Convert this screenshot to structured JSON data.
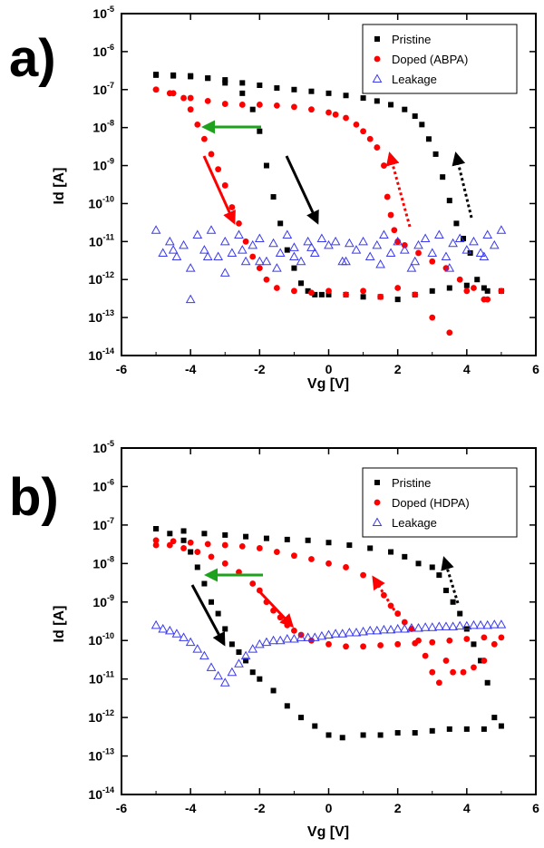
{
  "colors": {
    "pristine": "#000000",
    "doped": "#ff0000",
    "leakage": "#3a3af0",
    "green_arrow": "#1ea21e"
  },
  "chart_data": [
    {
      "type": "scatter",
      "panel_label": "a)",
      "xlabel": "Vg [V]",
      "ylabel": "Id [A]",
      "xlim": [
        -6,
        6
      ],
      "ylim": [
        1e-14,
        1e-05
      ],
      "yscale": "log",
      "x_ticks": [
        "-6",
        "-4",
        "-2",
        "0",
        "2",
        "4",
        "6"
      ],
      "y_ticks": [
        "-14",
        "-13",
        "-12",
        "-11",
        "-10",
        "-9",
        "-8",
        "-7",
        "-6",
        "-5"
      ],
      "grid": false,
      "legend_position": "top-right",
      "series": [
        {
          "name": "Pristine",
          "marker": "square",
          "color": "#000000",
          "x": [
            -5.0,
            -4.5,
            -4.0,
            -3.5,
            -3.0,
            -2.5,
            -2.2,
            -2.0,
            -1.8,
            -1.6,
            -1.4,
            -1.2,
            -1.0,
            -0.8,
            -0.6,
            -0.4,
            -0.2,
            0.0,
            0.5,
            1.0,
            1.5,
            2.0,
            2.5,
            3.0,
            3.5,
            4.0,
            4.5,
            5.0,
            4.6,
            4.3,
            4.1,
            3.9,
            3.7,
            3.5,
            3.3,
            3.1,
            2.9,
            2.7,
            2.5,
            2.2,
            1.8,
            1.4,
            1.0,
            0.5,
            0.0,
            -0.5,
            -1.0,
            -1.5,
            -2.0,
            -2.5,
            -3.0,
            -3.5,
            -4.0,
            -4.5,
            -5.0
          ],
          "y": [
            2.5e-07,
            2.4e-07,
            2.3e-07,
            2e-07,
            1.5e-07,
            8e-08,
            3e-08,
            8e-09,
            1e-09,
            1.5e-10,
            3e-11,
            6e-12,
            2e-12,
            8e-13,
            5e-13,
            4e-13,
            4e-13,
            4e-13,
            4e-13,
            3.5e-13,
            3.5e-13,
            3e-13,
            4e-13,
            5e-13,
            6e-13,
            7e-13,
            6e-13,
            5e-13,
            5e-13,
            1e-12,
            5e-12,
            1.2e-11,
            3e-11,
            1.2e-10,
            5e-10,
            2e-09,
            5e-09,
            1.2e-08,
            2e-08,
            3e-08,
            4e-08,
            5e-08,
            6e-08,
            7e-08,
            8e-08,
            9e-08,
            1e-07,
            1.1e-07,
            1.3e-07,
            1.5e-07,
            1.8e-07,
            2e-07,
            2.2e-07,
            2.3e-07,
            2.4e-07
          ]
        },
        {
          "name": "Doped (ABPA)",
          "marker": "circle",
          "color": "#ff0000",
          "x": [
            -5.0,
            -4.6,
            -4.2,
            -4.0,
            -3.8,
            -3.6,
            -3.4,
            -3.2,
            -3.0,
            -2.8,
            -2.6,
            -2.4,
            -2.2,
            -2.0,
            -1.8,
            -1.5,
            -1.0,
            -0.5,
            0.0,
            0.5,
            1.0,
            1.5,
            2.0,
            2.5,
            3.0,
            3.5,
            4.0,
            4.5,
            5.0,
            4.6,
            4.2,
            3.8,
            3.4,
            3.0,
            2.6,
            2.2,
            2.0,
            1.9,
            1.8,
            1.7,
            1.6,
            1.4,
            1.2,
            1.0,
            0.8,
            0.5,
            0.2,
            0.0,
            -0.5,
            -1.0,
            -1.5,
            -2.0,
            -2.5,
            -3.0,
            -3.5,
            -4.0,
            -4.5,
            -5.0
          ],
          "y": [
            1e-07,
            8e-08,
            6e-08,
            3e-08,
            1.2e-08,
            5e-09,
            2e-09,
            8e-10,
            3e-10,
            8e-11,
            3e-11,
            1e-11,
            4e-12,
            2e-12,
            1e-12,
            6e-13,
            5e-13,
            4.5e-13,
            5e-13,
            4e-13,
            5e-13,
            3.5e-13,
            6e-13,
            4e-13,
            1e-13,
            4e-14,
            5e-13,
            3e-13,
            5e-13,
            3e-13,
            6e-13,
            1e-12,
            2e-12,
            3e-12,
            5e-12,
            8e-12,
            1e-11,
            2e-11,
            5e-11,
            1.5e-10,
            1e-09,
            3e-09,
            5e-09,
            8e-09,
            1.2e-08,
            1.8e-08,
            2.2e-08,
            2.5e-08,
            3e-08,
            3.5e-08,
            3.8e-08,
            4e-08,
            4e-08,
            4.2e-08,
            5e-08,
            6e-08,
            8e-08,
            1e-07
          ]
        },
        {
          "name": "Leakage",
          "marker": "triangle-open",
          "color": "#3a3af0",
          "x": [
            -5.0,
            -4.8,
            -4.6,
            -4.4,
            -4.2,
            -4.0,
            -3.8,
            -3.6,
            -3.4,
            -3.2,
            -3.0,
            -2.8,
            -2.6,
            -2.4,
            -2.2,
            -2.0,
            -1.8,
            -1.6,
            -1.4,
            -1.2,
            -1.0,
            -0.8,
            -0.6,
            -0.4,
            -0.2,
            0.0,
            0.2,
            0.4,
            0.6,
            0.8,
            1.0,
            1.2,
            1.4,
            1.6,
            1.8,
            2.0,
            2.2,
            2.4,
            2.6,
            2.8,
            3.0,
            3.2,
            3.4,
            3.6,
            3.8,
            4.0,
            4.2,
            4.4,
            4.6,
            4.8,
            5.0,
            -4.5,
            -4.0,
            -3.5,
            -3.0,
            -2.5,
            -2.0,
            -1.5,
            -1.0,
            -0.5,
            0.5,
            1.5,
            2.5,
            3.5,
            4.5
          ],
          "y": [
            2e-11,
            5e-12,
            1e-11,
            4e-12,
            8e-12,
            2e-12,
            1.5e-11,
            6e-12,
            2e-11,
            4e-12,
            1e-11,
            5e-12,
            1.5e-11,
            3e-12,
            8e-12,
            1.2e-11,
            3e-12,
            9e-12,
            5e-12,
            1.5e-11,
            7e-12,
            3e-12,
            1e-11,
            5e-12,
            1.2e-11,
            8e-12,
            1e-11,
            3e-12,
            9e-12,
            6e-12,
            1e-11,
            4e-12,
            8e-12,
            1.5e-11,
            5e-12,
            1e-11,
            6e-12,
            2e-12,
            8e-12,
            1.2e-11,
            5e-12,
            1.5e-11,
            4e-12,
            9e-12,
            1.2e-11,
            6e-12,
            1e-11,
            5e-12,
            1.5e-11,
            8e-12,
            2e-11,
            6e-12,
            3e-13,
            4e-12,
            1.5e-12,
            6e-12,
            3e-12,
            2e-12,
            4e-12,
            7e-12,
            3e-12,
            2.5e-12,
            3e-12,
            2e-12,
            4e-12
          ]
        }
      ]
    },
    {
      "type": "scatter",
      "panel_label": "b)",
      "xlabel": "Vg [V]",
      "ylabel": "Id [A]",
      "xlim": [
        -6,
        6
      ],
      "ylim": [
        1e-14,
        1e-05
      ],
      "yscale": "log",
      "x_ticks": [
        "-6",
        "-4",
        "-2",
        "0",
        "2",
        "4",
        "6"
      ],
      "y_ticks": [
        "-14",
        "-13",
        "-12",
        "-11",
        "-10",
        "-9",
        "-8",
        "-7",
        "-6",
        "-5"
      ],
      "grid": false,
      "legend_position": "top-right",
      "series": [
        {
          "name": "Pristine",
          "marker": "square",
          "color": "#000000",
          "x": [
            -5.0,
            -4.6,
            -4.2,
            -4.0,
            -3.8,
            -3.6,
            -3.4,
            -3.2,
            -3.0,
            -2.8,
            -2.6,
            -2.4,
            -2.2,
            -2.0,
            -1.6,
            -1.2,
            -0.8,
            -0.4,
            0.0,
            0.4,
            1.0,
            1.5,
            2.0,
            2.5,
            3.0,
            3.5,
            4.0,
            4.5,
            5.0,
            4.8,
            4.6,
            4.4,
            4.2,
            4.0,
            3.8,
            3.6,
            3.4,
            3.2,
            3.0,
            2.6,
            2.2,
            1.8,
            1.2,
            0.6,
            0.0,
            -0.6,
            -1.2,
            -1.8,
            -2.4,
            -3.0,
            -3.6,
            -4.2,
            -5.0
          ],
          "y": [
            8e-08,
            6e-08,
            4e-08,
            2e-08,
            8e-09,
            3e-09,
            1e-09,
            5e-10,
            2e-10,
            8e-11,
            5e-11,
            3e-11,
            1.5e-11,
            1e-11,
            5e-12,
            2e-12,
            1e-12,
            6e-13,
            3.5e-13,
            3e-13,
            3.5e-13,
            3.5e-13,
            4e-13,
            4e-13,
            4.5e-13,
            5e-13,
            5e-13,
            5e-13,
            6e-13,
            1e-12,
            8e-12,
            3e-11,
            8e-11,
            2e-10,
            5e-10,
            1e-09,
            2e-09,
            5e-09,
            8e-09,
            1e-08,
            1.5e-08,
            2e-08,
            2.5e-08,
            3e-08,
            3.5e-08,
            4e-08,
            4.2e-08,
            4.5e-08,
            5e-08,
            5.5e-08,
            6e-08,
            7e-08,
            8e-08
          ]
        },
        {
          "name": "Doped (HDPA)",
          "marker": "circle",
          "color": "#ff0000",
          "x": [
            -5.0,
            -4.6,
            -4.2,
            -3.8,
            -3.4,
            -3.0,
            -2.6,
            -2.2,
            -2.0,
            -1.8,
            -1.6,
            -1.4,
            -1.2,
            -1.0,
            -0.8,
            -0.5,
            0.0,
            0.5,
            1.0,
            1.5,
            2.0,
            2.5,
            3.0,
            3.5,
            4.0,
            4.5,
            5.0,
            4.8,
            4.5,
            4.2,
            3.9,
            3.6,
            3.4,
            3.2,
            3.0,
            2.8,
            2.6,
            2.4,
            2.2,
            2.0,
            1.8,
            1.6,
            1.4,
            1.0,
            0.5,
            0.0,
            -0.5,
            -1.0,
            -1.5,
            -2.0,
            -2.5,
            -3.0,
            -3.5,
            -4.0,
            -4.5,
            -5.0
          ],
          "y": [
            3e-08,
            3e-08,
            2.5e-08,
            2e-08,
            1.5e-08,
            1e-08,
            6e-09,
            3e-09,
            2e-09,
            1e-09,
            6e-10,
            4e-10,
            2.5e-10,
            1.8e-10,
            1.4e-10,
            1e-10,
            8e-11,
            7e-11,
            7e-11,
            7.5e-11,
            8e-11,
            8.5e-11,
            9e-11,
            1e-10,
            1.1e-10,
            1.2e-10,
            1.2e-10,
            8e-11,
            3e-11,
            2e-11,
            1.5e-11,
            1.5e-11,
            3e-11,
            8e-12,
            1.5e-11,
            4e-11,
            1e-10,
            2e-10,
            3e-10,
            5e-10,
            8e-10,
            1.5e-09,
            3e-09,
            5e-09,
            8e-09,
            1e-08,
            1.3e-08,
            1.6e-08,
            2e-08,
            2.5e-08,
            2.8e-08,
            3e-08,
            3.2e-08,
            3.5e-08,
            3.8e-08,
            4e-08
          ]
        },
        {
          "name": "Leakage",
          "marker": "triangle-open",
          "color": "#3a3af0",
          "x": [
            -5.0,
            -4.8,
            -4.6,
            -4.4,
            -4.2,
            -4.0,
            -3.8,
            -3.6,
            -3.4,
            -3.2,
            -3.0,
            -2.8,
            -2.6,
            -2.4,
            -2.2,
            -2.0,
            -1.8,
            -1.6,
            -1.4,
            -1.2,
            -1.0,
            -0.8,
            -0.6,
            -0.4,
            -0.2,
            0.0,
            0.2,
            0.4,
            0.6,
            0.8,
            1.0,
            1.2,
            1.4,
            1.6,
            1.8,
            2.0,
            2.2,
            2.4,
            2.6,
            2.8,
            3.0,
            3.2,
            3.4,
            3.6,
            3.8,
            4.0,
            4.2,
            4.4,
            4.6,
            4.8,
            5.0
          ],
          "y": [
            2.5e-10,
            2e-10,
            1.8e-10,
            1.5e-10,
            1.2e-10,
            9e-11,
            6e-11,
            4e-11,
            2e-11,
            1.2e-11,
            8e-12,
            1.5e-11,
            2.5e-11,
            4e-11,
            6e-11,
            8e-11,
            9e-11,
            1e-10,
            1e-10,
            1.1e-10,
            1.1e-10,
            1.2e-10,
            1.2e-10,
            1.2e-10,
            1.3e-10,
            1.4e-10,
            1.5e-10,
            1.5e-10,
            1.6e-10,
            1.6e-10,
            1.7e-10,
            1.8e-10,
            1.8e-10,
            1.9e-10,
            1.9e-10,
            2e-10,
            2e-10,
            2.1e-10,
            2.1e-10,
            2.2e-10,
            2.2e-10,
            2.3e-10,
            2.3e-10,
            2.3e-10,
            2.4e-10,
            2.4e-10,
            2.5e-10,
            2.5e-10,
            2.5e-10,
            2.6e-10,
            2.6e-10
          ]
        }
      ]
    }
  ]
}
